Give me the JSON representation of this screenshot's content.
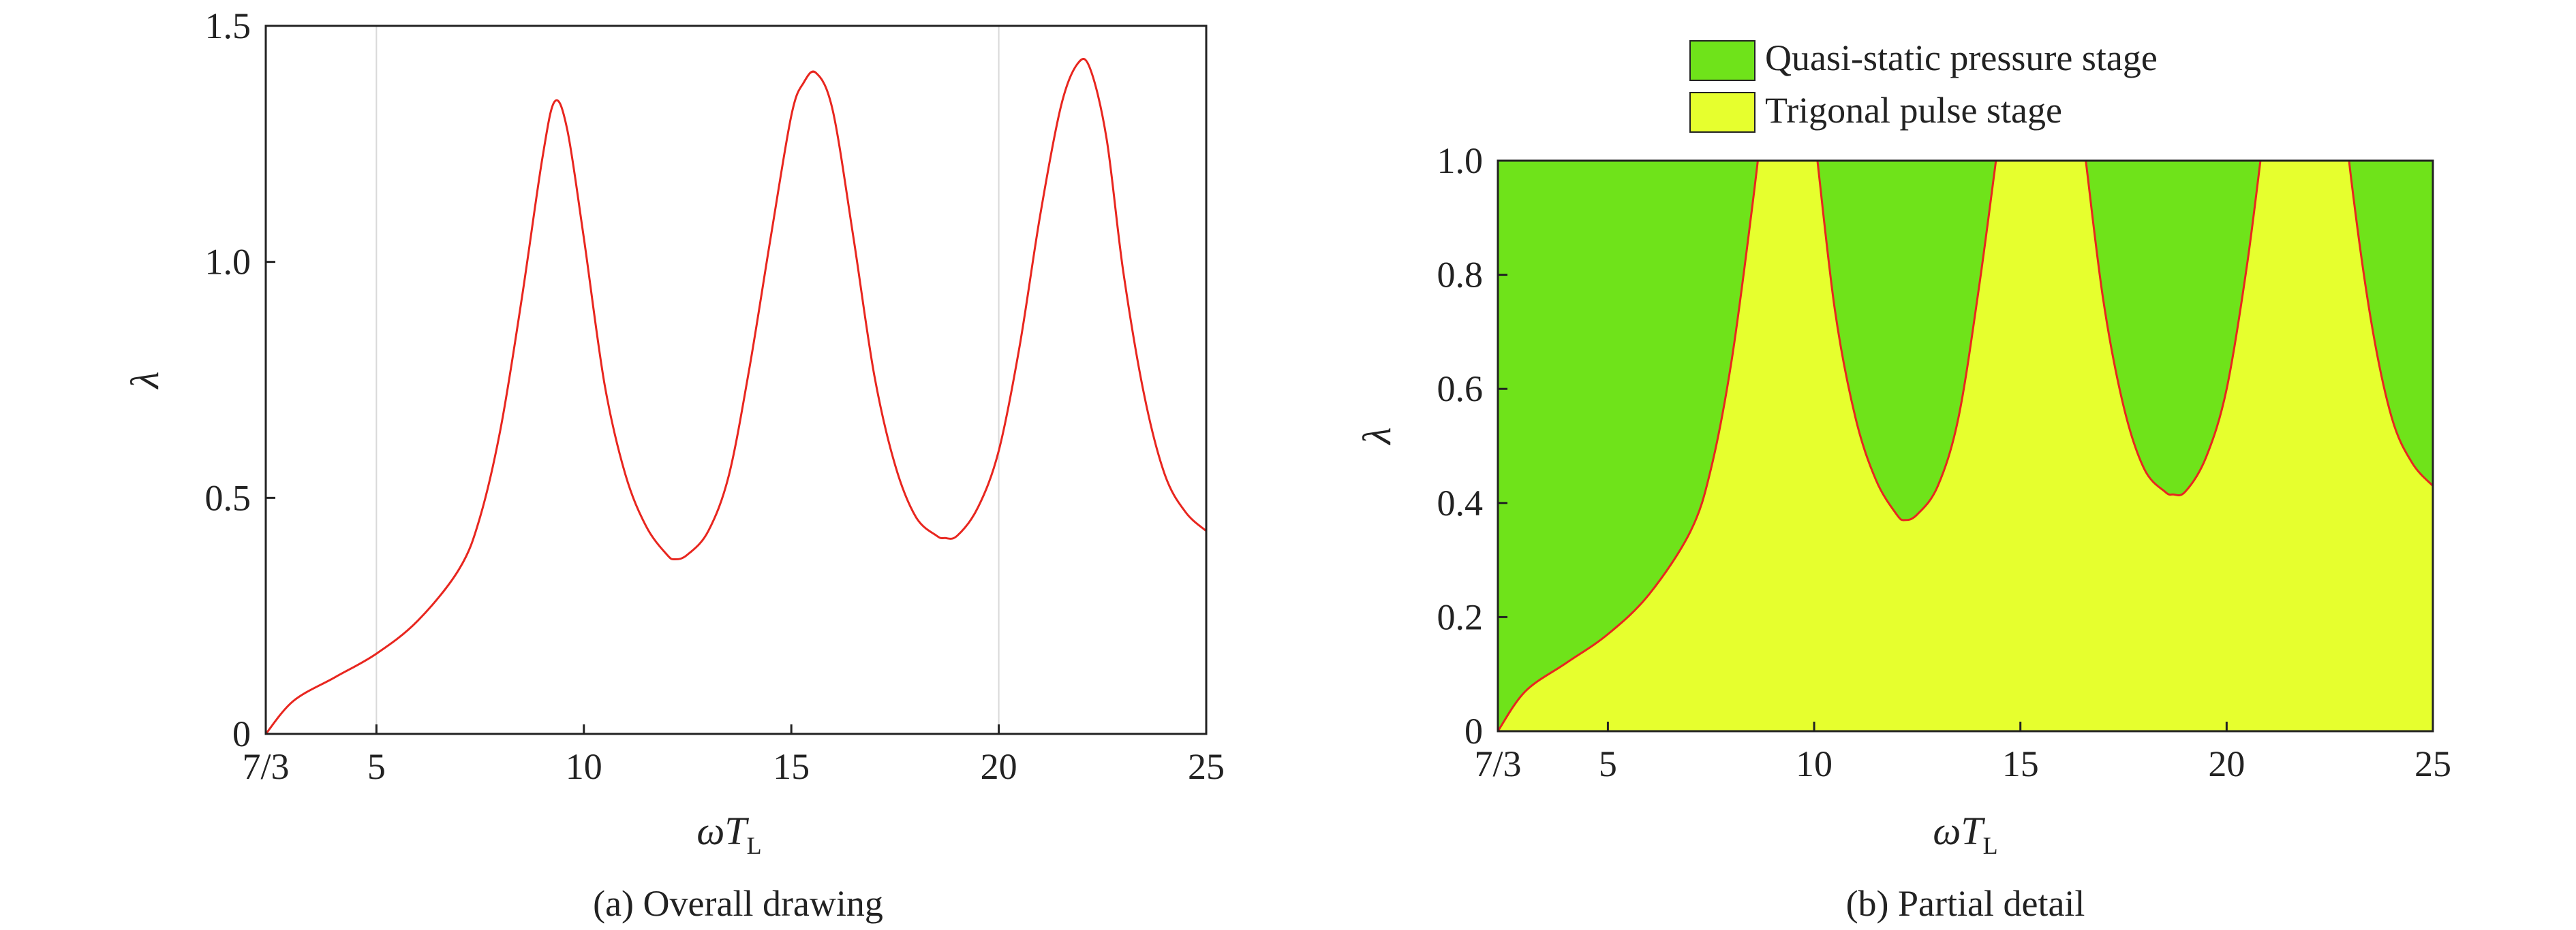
{
  "chart_data": [
    {
      "panel": "a",
      "type": "line",
      "caption": "(a) Overall drawing",
      "xlabel_main": "ωT",
      "xlabel_sub": "L",
      "ylabel": "λ",
      "xlim": [
        2.3333,
        25
      ],
      "ylim": [
        0,
        1.5
      ],
      "x_ticks": [
        2.3333,
        5,
        10,
        15,
        20,
        25
      ],
      "x_tick_labels": [
        "7/3",
        "5",
        "10",
        "15",
        "20",
        "25"
      ],
      "y_ticks": [
        0,
        0.5,
        1.0,
        1.5
      ],
      "y_tick_labels": [
        "0",
        "0.5",
        "1.0",
        "1.5"
      ],
      "vertical_gridlines_at": [
        5,
        20
      ],
      "line_color": "#e8261f",
      "series": [
        {
          "x": [
            2.3333,
            3,
            4,
            5,
            6,
            7,
            7.5,
            8,
            8.5,
            9,
            9.3,
            9.6,
            10,
            10.5,
            11,
            11.5,
            12,
            12.2,
            12.5,
            13,
            13.5,
            14,
            14.5,
            15,
            15.3,
            15.6,
            16,
            16.5,
            17,
            17.5,
            18,
            18.5,
            18.7,
            19,
            19.5,
            20,
            20.5,
            21,
            21.5,
            21.9,
            22.2,
            22.6,
            23,
            23.5,
            24,
            24.5,
            25
          ],
          "y": [
            0,
            0.07,
            0.12,
            0.17,
            0.24,
            0.35,
            0.46,
            0.65,
            0.92,
            1.22,
            1.34,
            1.28,
            1.05,
            0.74,
            0.55,
            0.44,
            0.38,
            0.37,
            0.38,
            0.43,
            0.55,
            0.78,
            1.05,
            1.31,
            1.38,
            1.4,
            1.32,
            1.05,
            0.76,
            0.57,
            0.46,
            0.42,
            0.415,
            0.42,
            0.48,
            0.6,
            0.82,
            1.1,
            1.33,
            1.42,
            1.41,
            1.26,
            0.98,
            0.72,
            0.55,
            0.47,
            0.43
          ]
        }
      ]
    },
    {
      "panel": "b",
      "type": "area",
      "caption": "(b) Partial detail",
      "xlabel_main": "ωT",
      "xlabel_sub": "L",
      "ylabel": "λ",
      "xlim": [
        2.3333,
        25
      ],
      "ylim": [
        0,
        1.0
      ],
      "x_ticks": [
        2.3333,
        5,
        10,
        15,
        20,
        25
      ],
      "x_tick_labels": [
        "7/3",
        "5",
        "10",
        "15",
        "20",
        "25"
      ],
      "y_ticks": [
        0,
        0.2,
        0.4,
        0.6,
        0.8,
        1.0
      ],
      "y_tick_labels": [
        "0",
        "0.2",
        "0.4",
        "0.6",
        "0.8",
        "1.0"
      ],
      "legend": {
        "position": "top",
        "entries": [
          {
            "label": "Quasi-static pressure stage",
            "color": "#6fe31a"
          },
          {
            "label": "Trigonal pulse stage",
            "color": "#e6ff2e"
          }
        ]
      },
      "boundary_color": "#e8261f",
      "upper_region_color": "#6fe31a",
      "lower_region_color": "#e6ff2e",
      "note": "boundary is the same curve as panel (a), clipped at λ = 1.0"
    }
  ]
}
